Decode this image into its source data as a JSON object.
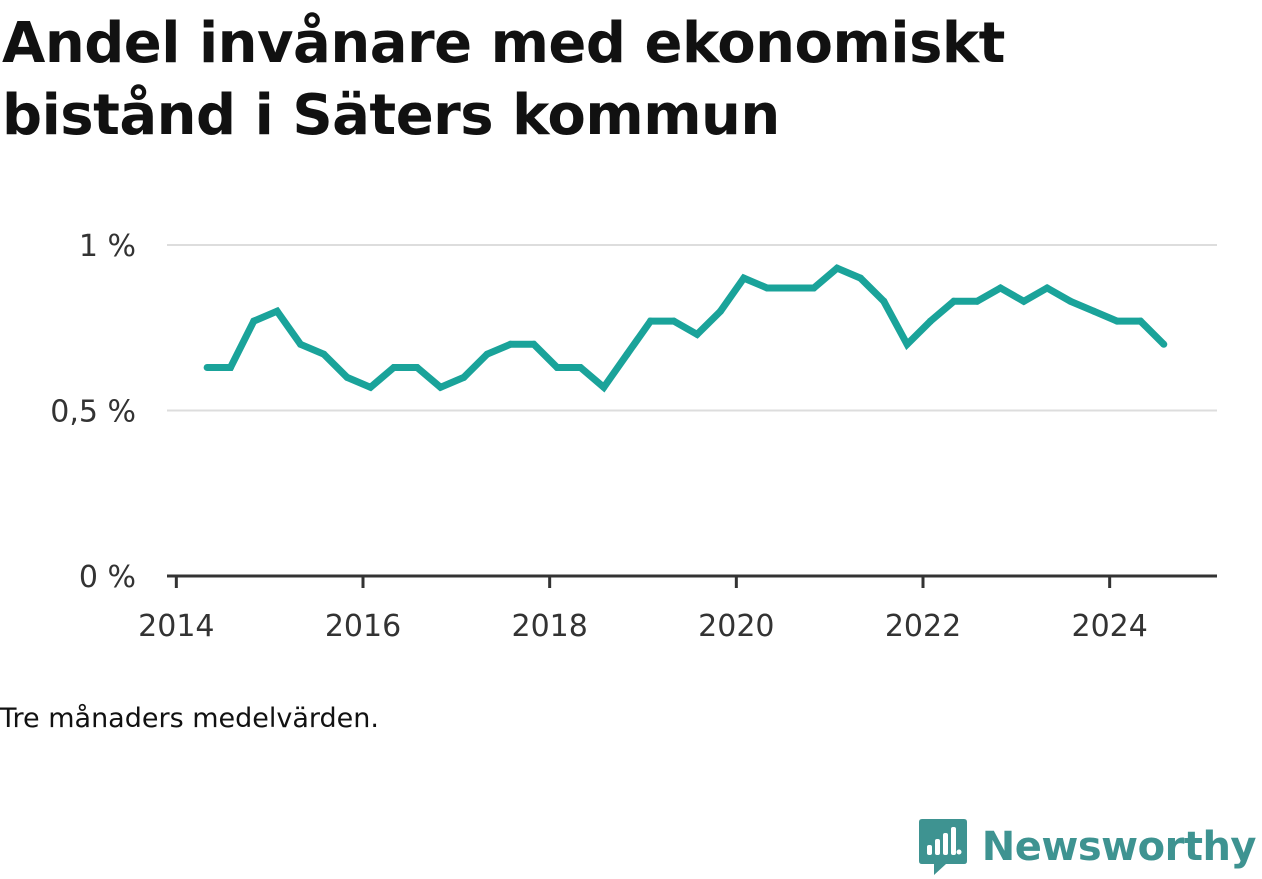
{
  "title": "Andel invånare med ekonomiskt bistånd i Säters kommun",
  "caption": "Tre månaders medelvärden.",
  "brand": {
    "name": "Newsworthy",
    "icon": "newsworthy-logo-icon"
  },
  "colors": {
    "line": "#1aa39a",
    "grid": "#dddddd",
    "axis": "#333333",
    "brand": "#3e9391"
  },
  "chart_data": {
    "type": "line",
    "xlabel": "",
    "ylabel": "",
    "xlim": [
      2013.9,
      2025.15
    ],
    "ylim": [
      0,
      1
    ],
    "x_ticks": [
      2014,
      2016,
      2018,
      2020,
      2022,
      2024
    ],
    "x_tick_labels": [
      "2014",
      "2016",
      "2018",
      "2020",
      "2022",
      "2024"
    ],
    "y_ticks": [
      0,
      0.5,
      1
    ],
    "y_tick_labels": [
      "0 %",
      "0,5 %",
      "1 %"
    ],
    "grid": true,
    "series": [
      {
        "name": "",
        "x": [
          2014.33,
          2014.58,
          2014.83,
          2015.08,
          2015.33,
          2015.58,
          2015.83,
          2016.08,
          2016.33,
          2016.58,
          2016.83,
          2017.08,
          2017.33,
          2017.58,
          2017.83,
          2018.08,
          2018.33,
          2018.58,
          2018.83,
          2019.08,
          2019.33,
          2019.58,
          2019.83,
          2020.08,
          2020.33,
          2020.58,
          2020.83,
          2021.08,
          2021.33,
          2021.58,
          2021.83,
          2022.08,
          2022.33,
          2022.58,
          2022.83,
          2023.08,
          2023.33,
          2023.58,
          2023.83,
          2024.08,
          2024.33,
          2024.58
        ],
        "values": [
          0.63,
          0.63,
          0.77,
          0.8,
          0.7,
          0.67,
          0.6,
          0.57,
          0.63,
          0.63,
          0.57,
          0.6,
          0.67,
          0.7,
          0.7,
          0.63,
          0.63,
          0.57,
          0.67,
          0.77,
          0.77,
          0.73,
          0.8,
          0.9,
          0.87,
          0.87,
          0.87,
          0.93,
          0.9,
          0.83,
          0.7,
          0.77,
          0.83,
          0.83,
          0.87,
          0.83,
          0.87,
          0.83,
          0.8,
          0.77,
          0.77,
          0.7
        ]
      }
    ]
  }
}
